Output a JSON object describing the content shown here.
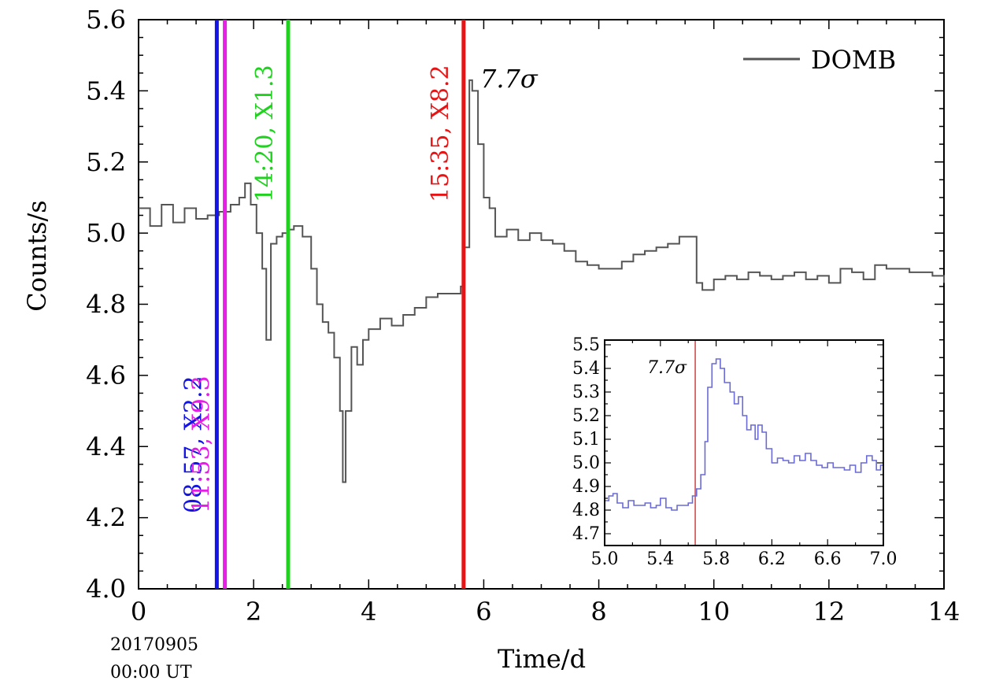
{
  "chart_data": {
    "type": "line",
    "title": "",
    "xlabel": "Time/d",
    "ylabel": "Counts/s",
    "xlim": [
      0,
      14
    ],
    "ylim": [
      4.0,
      5.6
    ],
    "xticks": [
      "0",
      "2",
      "4",
      "6",
      "8",
      "10",
      "12",
      "14"
    ],
    "yticks": [
      "4.0",
      "4.2",
      "4.4",
      "4.6",
      "4.8",
      "5.0",
      "5.2",
      "5.4",
      "5.6"
    ],
    "epoch_label": [
      "20170905",
      "00:00 UT"
    ],
    "legend": {
      "label": "DOMB",
      "position": "top-right"
    },
    "series": [
      {
        "name": "DOMB",
        "style": "step",
        "color": "#555555",
        "points": [
          [
            0.0,
            5.07
          ],
          [
            0.2,
            5.02
          ],
          [
            0.4,
            5.08
          ],
          [
            0.6,
            5.03
          ],
          [
            0.8,
            5.07
          ],
          [
            1.0,
            5.04
          ],
          [
            1.2,
            5.05
          ],
          [
            1.4,
            5.06
          ],
          [
            1.6,
            5.08
          ],
          [
            1.75,
            5.1
          ],
          [
            1.85,
            5.14
          ],
          [
            1.95,
            5.08
          ],
          [
            2.05,
            5.0
          ],
          [
            2.15,
            4.9
          ],
          [
            2.22,
            4.7
          ],
          [
            2.3,
            4.97
          ],
          [
            2.4,
            4.99
          ],
          [
            2.5,
            5.0
          ],
          [
            2.6,
            5.01
          ],
          [
            2.7,
            5.02
          ],
          [
            2.85,
            4.99
          ],
          [
            3.0,
            4.9
          ],
          [
            3.1,
            4.8
          ],
          [
            3.2,
            4.75
          ],
          [
            3.3,
            4.72
          ],
          [
            3.4,
            4.65
          ],
          [
            3.5,
            4.5
          ],
          [
            3.55,
            4.3
          ],
          [
            3.6,
            4.5
          ],
          [
            3.7,
            4.68
          ],
          [
            3.8,
            4.63
          ],
          [
            3.9,
            4.7
          ],
          [
            4.0,
            4.73
          ],
          [
            4.2,
            4.76
          ],
          [
            4.4,
            4.74
          ],
          [
            4.6,
            4.77
          ],
          [
            4.8,
            4.79
          ],
          [
            5.0,
            4.82
          ],
          [
            5.2,
            4.83
          ],
          [
            5.4,
            4.83
          ],
          [
            5.6,
            4.85
          ],
          [
            5.65,
            4.96
          ],
          [
            5.75,
            5.43
          ],
          [
            5.8,
            5.4
          ],
          [
            5.9,
            5.25
          ],
          [
            6.0,
            5.1
          ],
          [
            6.1,
            5.07
          ],
          [
            6.2,
            4.99
          ],
          [
            6.4,
            5.01
          ],
          [
            6.6,
            4.98
          ],
          [
            6.8,
            5.0
          ],
          [
            7.0,
            4.98
          ],
          [
            7.2,
            4.97
          ],
          [
            7.4,
            4.95
          ],
          [
            7.6,
            4.92
          ],
          [
            7.8,
            4.91
          ],
          [
            8.0,
            4.9
          ],
          [
            8.2,
            4.9
          ],
          [
            8.4,
            4.92
          ],
          [
            8.6,
            4.94
          ],
          [
            8.8,
            4.95
          ],
          [
            9.0,
            4.96
          ],
          [
            9.2,
            4.97
          ],
          [
            9.4,
            4.99
          ],
          [
            9.6,
            4.99
          ],
          [
            9.7,
            4.86
          ],
          [
            9.8,
            4.84
          ],
          [
            10.0,
            4.87
          ],
          [
            10.2,
            4.88
          ],
          [
            10.4,
            4.87
          ],
          [
            10.6,
            4.89
          ],
          [
            10.8,
            4.88
          ],
          [
            11.0,
            4.87
          ],
          [
            11.2,
            4.88
          ],
          [
            11.4,
            4.89
          ],
          [
            11.6,
            4.87
          ],
          [
            11.8,
            4.88
          ],
          [
            12.0,
            4.86
          ],
          [
            12.2,
            4.9
          ],
          [
            12.4,
            4.89
          ],
          [
            12.6,
            4.87
          ],
          [
            12.8,
            4.91
          ],
          [
            13.0,
            4.9
          ],
          [
            13.2,
            4.9
          ],
          [
            13.4,
            4.89
          ],
          [
            13.6,
            4.89
          ],
          [
            13.8,
            4.88
          ],
          [
            14.0,
            4.86
          ]
        ]
      }
    ],
    "event_lines": [
      {
        "x": 1.36,
        "color": "#1414e6",
        "label": "08:57, X2.2"
      },
      {
        "x": 1.5,
        "color": "#e61ee6",
        "label": "11:53, X9.3"
      },
      {
        "x": 2.6,
        "color": "#1ed21e",
        "label": "14:20, X1.3"
      },
      {
        "x": 5.65,
        "color": "#e61414",
        "label": "15:35, X8.2"
      }
    ],
    "annotations": [
      {
        "text": "7.7σ",
        "x": 5.95,
        "y": 5.43
      }
    ],
    "inset": {
      "type": "line",
      "xlim": [
        5.0,
        7.0
      ],
      "ylim": [
        4.65,
        5.52
      ],
      "xticks": [
        "5.0",
        "5.4",
        "5.8",
        "6.2",
        "6.6",
        "7.0"
      ],
      "yticks": [
        "4.7",
        "4.8",
        "4.9",
        "5.0",
        "5.1",
        "5.2",
        "5.3",
        "5.4",
        "5.5"
      ],
      "annotation": "7.7σ",
      "marker_x": 5.65,
      "marker_color": "#d04040",
      "series_color": "#6a6ad8",
      "points": [
        [
          5.0,
          4.84
        ],
        [
          5.03,
          4.86
        ],
        [
          5.06,
          4.87
        ],
        [
          5.09,
          4.83
        ],
        [
          5.13,
          4.81
        ],
        [
          5.17,
          4.84
        ],
        [
          5.21,
          4.82
        ],
        [
          5.25,
          4.82
        ],
        [
          5.29,
          4.83
        ],
        [
          5.33,
          4.81
        ],
        [
          5.37,
          4.82
        ],
        [
          5.4,
          4.85
        ],
        [
          5.44,
          4.81
        ],
        [
          5.48,
          4.8
        ],
        [
          5.52,
          4.82
        ],
        [
          5.56,
          4.82
        ],
        [
          5.6,
          4.83
        ],
        [
          5.63,
          4.86
        ],
        [
          5.66,
          4.89
        ],
        [
          5.69,
          4.95
        ],
        [
          5.72,
          5.09
        ],
        [
          5.74,
          5.32
        ],
        [
          5.77,
          5.42
        ],
        [
          5.8,
          5.44
        ],
        [
          5.83,
          5.4
        ],
        [
          5.86,
          5.34
        ],
        [
          5.9,
          5.3
        ],
        [
          5.93,
          5.25
        ],
        [
          5.96,
          5.28
        ],
        [
          5.99,
          5.2
        ],
        [
          6.02,
          5.14
        ],
        [
          6.05,
          5.16
        ],
        [
          6.08,
          5.1
        ],
        [
          6.1,
          5.16
        ],
        [
          6.13,
          5.13
        ],
        [
          6.16,
          5.06
        ],
        [
          6.2,
          5.0
        ],
        [
          6.24,
          5.02
        ],
        [
          6.28,
          5.01
        ],
        [
          6.32,
          5.0
        ],
        [
          6.36,
          5.03
        ],
        [
          6.4,
          5.01
        ],
        [
          6.44,
          5.04
        ],
        [
          6.48,
          5.01
        ],
        [
          6.52,
          4.99
        ],
        [
          6.56,
          4.98
        ],
        [
          6.6,
          5.0
        ],
        [
          6.64,
          4.98
        ],
        [
          6.68,
          4.98
        ],
        [
          6.72,
          4.97
        ],
        [
          6.76,
          4.99
        ],
        [
          6.8,
          4.96
        ],
        [
          6.84,
          5.0
        ],
        [
          6.88,
          5.03
        ],
        [
          6.92,
          5.01
        ],
        [
          6.95,
          4.97
        ],
        [
          6.98,
          4.99
        ],
        [
          7.0,
          4.99
        ]
      ]
    }
  }
}
